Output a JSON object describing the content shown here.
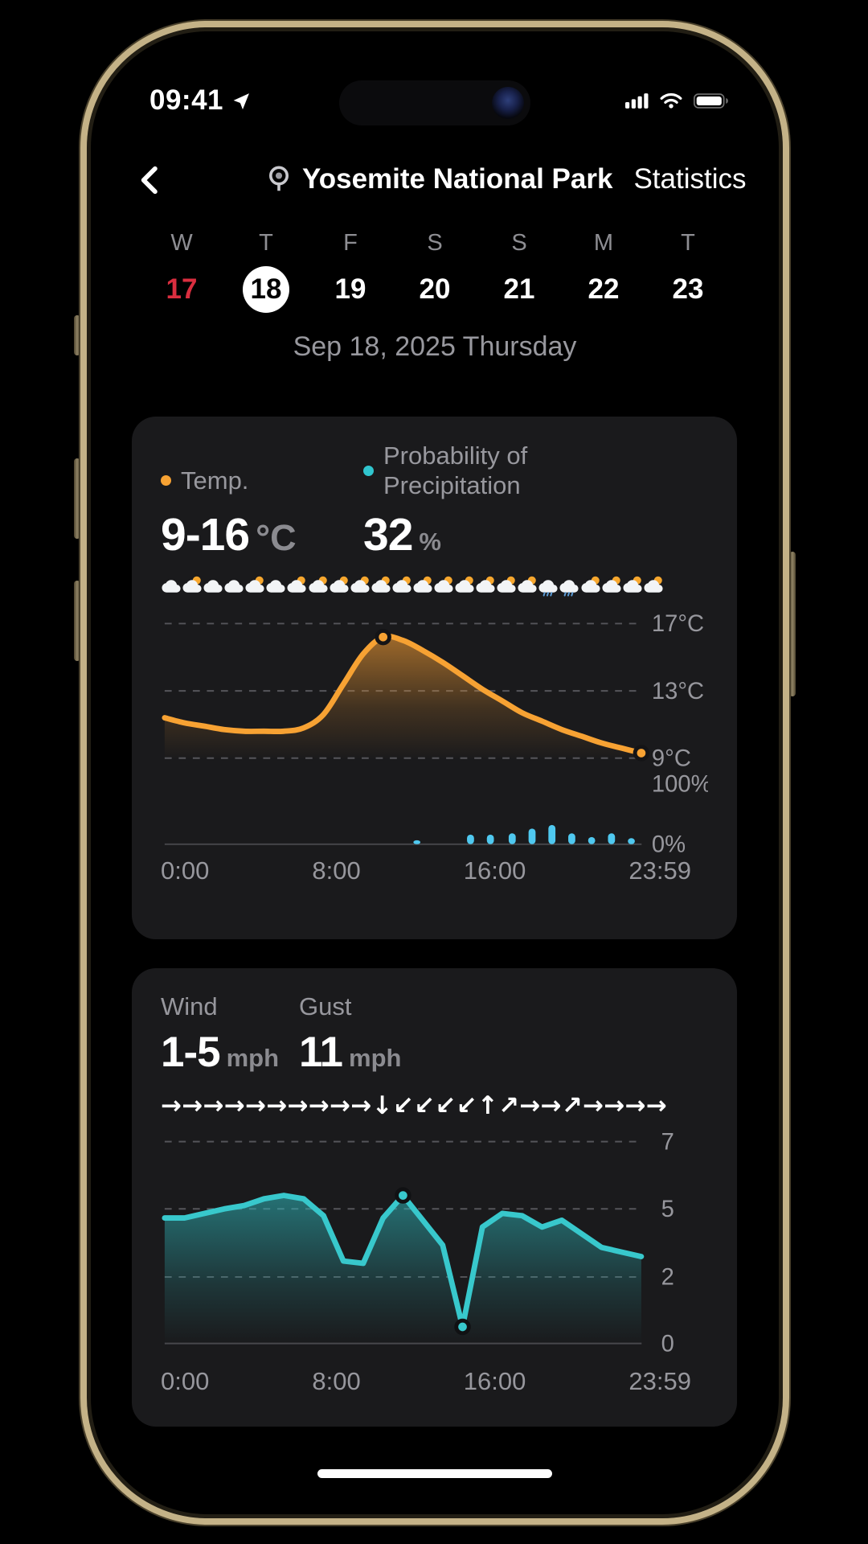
{
  "status_bar": {
    "time": "09:41"
  },
  "nav": {
    "title": "Yosemite National Park",
    "tab": "Statistics"
  },
  "week": {
    "letters": [
      "W",
      "T",
      "F",
      "S",
      "S",
      "M",
      "T"
    ],
    "numbers": [
      "17",
      "18",
      "19",
      "20",
      "21",
      "22",
      "23"
    ],
    "selected_index": 1,
    "today_index": 0
  },
  "date_line": "Sep 18, 2025 Thursday",
  "temp_card": {
    "legend": [
      {
        "label": "Temp.",
        "color": "#F7A233"
      },
      {
        "label": "Probability of Precipitation",
        "color": "#30C5CE"
      }
    ],
    "temp_range": "9-16",
    "temp_unit": "°C",
    "pop_value": "32",
    "pop_unit": "%",
    "hourly_icons": [
      "cloud",
      "cloud-sun",
      "cloud",
      "cloud",
      "cloud-sun",
      "cloud",
      "cloud-sun",
      "cloud-sun",
      "cloud-sun",
      "cloud-sun",
      "cloud-sun",
      "cloud-sun",
      "cloud-sun",
      "cloud-sun",
      "cloud-sun",
      "cloud-sun",
      "cloud-sun",
      "cloud-sun",
      "rain",
      "rain",
      "cloud-sun",
      "cloud-sun",
      "cloud-sun",
      "cloud-sun"
    ]
  },
  "wind_card": {
    "wind_label": "Wind",
    "wind_value": "1-5",
    "wind_unit": "mph",
    "gust_label": "Gust",
    "gust_value": "11",
    "gust_unit": "mph",
    "arrows": [
      "→",
      "→",
      "→",
      "→",
      "→",
      "→",
      "→",
      "→",
      "→",
      "→",
      "↓",
      "↙",
      "↙",
      "↙",
      "↙",
      "↑",
      "↗",
      "→",
      "→",
      "↗",
      "→",
      "→",
      "→",
      "→"
    ]
  },
  "chart_data": [
    {
      "type": "area",
      "name": "temperature-and-precipitation-by-hour",
      "x_unit": "hour",
      "x_range": [
        0,
        24
      ],
      "x_tick_labels": [
        "0:00",
        "8:00",
        "16:00",
        "23:59"
      ],
      "temp": {
        "unit": "°C",
        "y_ticks": [
          17,
          13,
          9
        ],
        "values": [
          11.4,
          11.1,
          10.9,
          10.7,
          10.6,
          10.6,
          10.6,
          10.8,
          11.6,
          13.4,
          15.2,
          16.2,
          16.0,
          15.4,
          14.7,
          13.9,
          13.1,
          12.4,
          11.7,
          11.2,
          10.7,
          10.3,
          9.9,
          9.6,
          9.3
        ],
        "peak_marker_hour": 11,
        "end_marker_hour": 24
      },
      "precipitation": {
        "unit": "%",
        "y_ticks": [
          100,
          0
        ],
        "bars": [
          {
            "hour": 12.7,
            "pct": 3
          },
          {
            "hour": 15.4,
            "pct": 16
          },
          {
            "hour": 16.4,
            "pct": 16
          },
          {
            "hour": 17.5,
            "pct": 18
          },
          {
            "hour": 18.5,
            "pct": 26
          },
          {
            "hour": 19.5,
            "pct": 32
          },
          {
            "hour": 20.5,
            "pct": 18
          },
          {
            "hour": 21.5,
            "pct": 12
          },
          {
            "hour": 22.5,
            "pct": 18
          },
          {
            "hour": 23.5,
            "pct": 10
          }
        ]
      }
    },
    {
      "type": "area",
      "name": "wind-speed-by-hour",
      "x_unit": "hour",
      "x_range": [
        0,
        24
      ],
      "x_tick_labels": [
        "0:00",
        "8:00",
        "16:00",
        "23:59"
      ],
      "wind": {
        "unit": "mph",
        "y_ticks": [
          7,
          5,
          2,
          0
        ],
        "values": [
          4.6,
          4.6,
          4.8,
          5.0,
          5.1,
          5.3,
          5.4,
          5.3,
          4.7,
          2.7,
          2.6,
          4.6,
          5.4,
          4.5,
          3.4,
          0.5,
          4.2,
          4.8,
          4.7,
          4.2,
          4.5,
          3.9,
          3.3,
          3.1,
          2.9
        ],
        "max_marker_hour": 12,
        "min_marker_hour": 15
      }
    }
  ],
  "colors": {
    "temp_line": "#F7A233",
    "precip_bar": "#4FC8EF",
    "wind_line": "#38C8CC",
    "selected_day_bg": "#FFFFFF",
    "today_red": "#DA2E3F",
    "card_bg": "#1A1A1C",
    "label_gray": "#97979D"
  }
}
